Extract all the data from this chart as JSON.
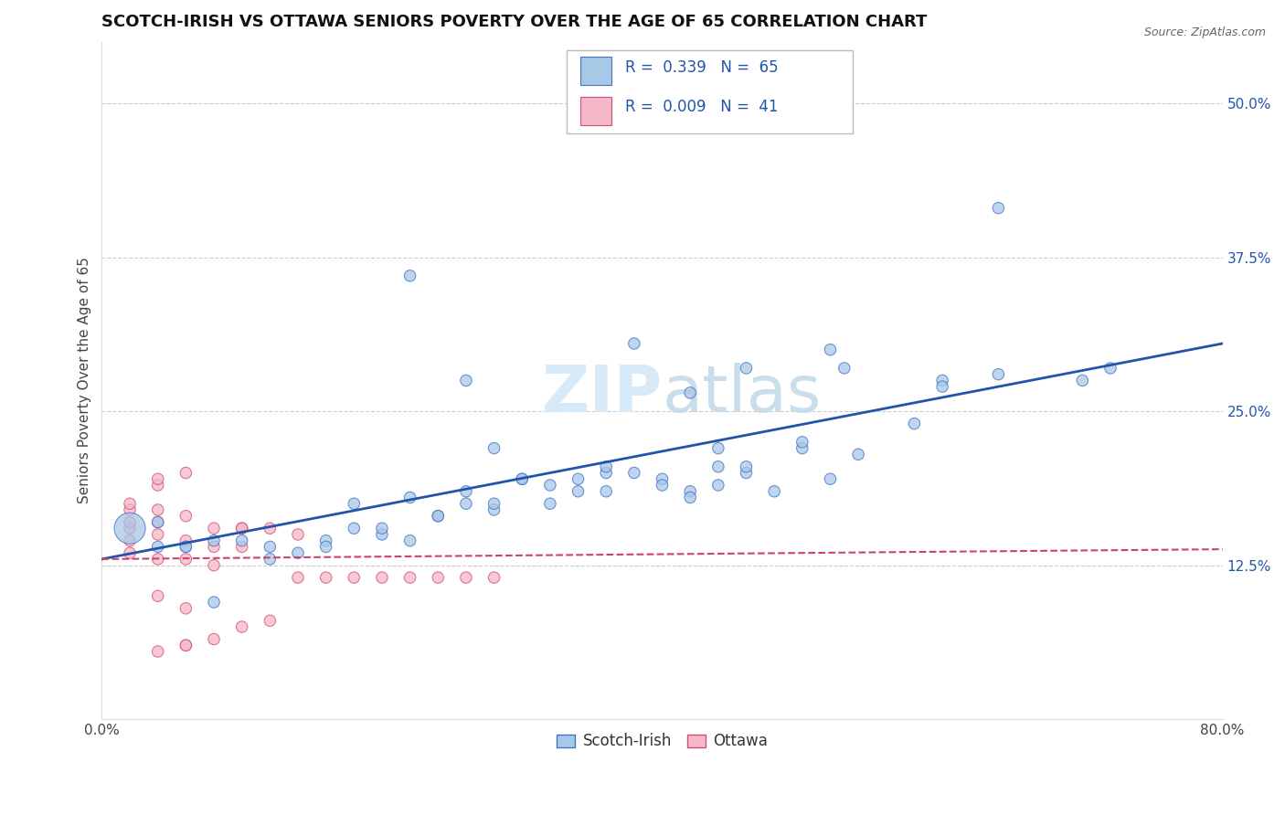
{
  "title": "SCOTCH-IRISH VS OTTAWA SENIORS POVERTY OVER THE AGE OF 65 CORRELATION CHART",
  "source": "Source: ZipAtlas.com",
  "ylabel": "Seniors Poverty Over the Age of 65",
  "xlim": [
    0.0,
    0.8
  ],
  "ylim": [
    0.0,
    0.55
  ],
  "ytick_positions": [
    0.125,
    0.25,
    0.375,
    0.5
  ],
  "ytick_labels": [
    "12.5%",
    "25.0%",
    "37.5%",
    "50.0%"
  ],
  "blue_color": "#a8c8e8",
  "blue_edge_color": "#4472c4",
  "pink_color": "#f4b8c8",
  "pink_edge_color": "#d45070",
  "blue_line_color": "#2255aa",
  "pink_line_color": "#cc4466",
  "watermark_color": "#d8eaf8",
  "scotch_irish_x": [
    0.38,
    0.52,
    0.46,
    0.42,
    0.44,
    0.53,
    0.26,
    0.22,
    0.36,
    0.3,
    0.34,
    0.28,
    0.32,
    0.26,
    0.28,
    0.24,
    0.22,
    0.2,
    0.18,
    0.16,
    0.14,
    0.12,
    0.1,
    0.08,
    0.06,
    0.04,
    0.06,
    0.04,
    0.02,
    0.38,
    0.4,
    0.44,
    0.46,
    0.5,
    0.54,
    0.58,
    0.6,
    0.64,
    0.7,
    0.72,
    0.42,
    0.46,
    0.5,
    0.36,
    0.34,
    0.3,
    0.26,
    0.22,
    0.18,
    0.52,
    0.48,
    0.44,
    0.4,
    0.36,
    0.32,
    0.28,
    0.24,
    0.2,
    0.16,
    0.12,
    0.08,
    0.6,
    0.64,
    0.42
  ],
  "scotch_irish_y": [
    0.305,
    0.3,
    0.285,
    0.265,
    0.22,
    0.285,
    0.275,
    0.36,
    0.2,
    0.195,
    0.185,
    0.22,
    0.19,
    0.175,
    0.17,
    0.165,
    0.145,
    0.15,
    0.155,
    0.145,
    0.135,
    0.14,
    0.145,
    0.145,
    0.14,
    0.14,
    0.14,
    0.16,
    0.155,
    0.2,
    0.195,
    0.205,
    0.2,
    0.22,
    0.215,
    0.24,
    0.275,
    0.28,
    0.275,
    0.285,
    0.185,
    0.205,
    0.225,
    0.205,
    0.195,
    0.195,
    0.185,
    0.18,
    0.175,
    0.195,
    0.185,
    0.19,
    0.19,
    0.185,
    0.175,
    0.175,
    0.165,
    0.155,
    0.14,
    0.13,
    0.095,
    0.27,
    0.415,
    0.18
  ],
  "scotch_irish_size": [
    80,
    80,
    80,
    80,
    80,
    80,
    80,
    80,
    80,
    80,
    80,
    80,
    80,
    80,
    80,
    80,
    80,
    80,
    80,
    80,
    80,
    80,
    80,
    80,
    80,
    80,
    80,
    80,
    600,
    80,
    80,
    80,
    80,
    80,
    80,
    80,
    80,
    80,
    80,
    80,
    80,
    80,
    80,
    80,
    80,
    80,
    80,
    80,
    80,
    80,
    80,
    80,
    80,
    80,
    80,
    80,
    80,
    80,
    80,
    80,
    80,
    80,
    80,
    80
  ],
  "ottawa_x": [
    0.02,
    0.02,
    0.02,
    0.02,
    0.02,
    0.02,
    0.04,
    0.04,
    0.04,
    0.04,
    0.04,
    0.04,
    0.06,
    0.06,
    0.06,
    0.06,
    0.08,
    0.08,
    0.08,
    0.1,
    0.1,
    0.12,
    0.14,
    0.06,
    0.08,
    0.04,
    0.06,
    0.1,
    0.12,
    0.04,
    0.06,
    0.1,
    0.14,
    0.16,
    0.18,
    0.2,
    0.22,
    0.24,
    0.26,
    0.28
  ],
  "ottawa_y": [
    0.135,
    0.145,
    0.155,
    0.16,
    0.17,
    0.175,
    0.1,
    0.13,
    0.15,
    0.16,
    0.17,
    0.19,
    0.09,
    0.13,
    0.145,
    0.165,
    0.125,
    0.14,
    0.155,
    0.14,
    0.155,
    0.155,
    0.15,
    0.06,
    0.065,
    0.055,
    0.06,
    0.075,
    0.08,
    0.195,
    0.2,
    0.155,
    0.115,
    0.115,
    0.115,
    0.115,
    0.115,
    0.115,
    0.115,
    0.115
  ],
  "ottawa_size": [
    80,
    80,
    80,
    80,
    80,
    80,
    80,
    80,
    80,
    80,
    80,
    80,
    80,
    80,
    80,
    80,
    80,
    80,
    80,
    80,
    80,
    80,
    80,
    80,
    80,
    80,
    80,
    80,
    80,
    80,
    80,
    80,
    80,
    80,
    80,
    80,
    80,
    80,
    80,
    80
  ],
  "blue_trend_x0": 0.0,
  "blue_trend_y0": 0.13,
  "blue_trend_x1": 0.8,
  "blue_trend_y1": 0.305,
  "pink_trend_x0": 0.0,
  "pink_trend_y0": 0.13,
  "pink_trend_x1": 0.8,
  "pink_trend_y1": 0.138
}
